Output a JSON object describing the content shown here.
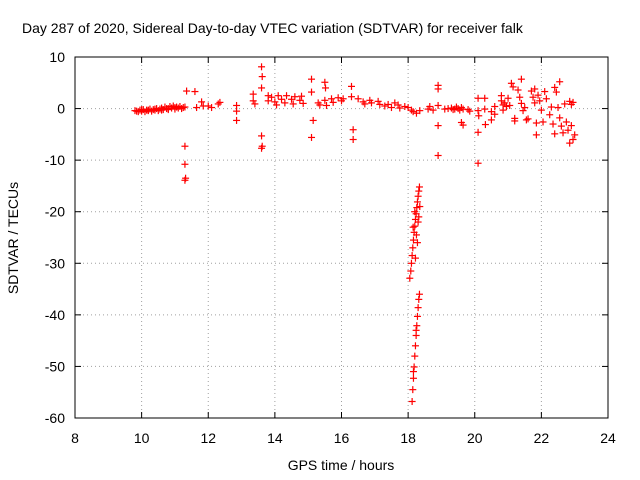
{
  "chart_data": {
    "type": "scatter",
    "title": "Day 287 of 2020, Sidereal Day-to-day VTEC variation (SDTVAR) for receiver falk",
    "xlabel": "GPS time / hours",
    "ylabel": "SDTVAR / TECUs",
    "xlim": [
      8,
      24
    ],
    "ylim": [
      -60,
      10
    ],
    "xticks": [
      8,
      10,
      12,
      14,
      16,
      18,
      20,
      22,
      24
    ],
    "yticks": [
      -60,
      -50,
      -40,
      -30,
      -20,
      -10,
      0,
      10
    ],
    "xtick_labels": [
      "8",
      "10",
      "12",
      "14",
      "16",
      "18",
      "20",
      "22",
      "24"
    ],
    "ytick_labels": [
      "-60",
      "-50",
      "-40",
      "-30",
      "-20",
      "-10",
      "0",
      "10"
    ],
    "grid": true,
    "marker": "+",
    "series": [
      {
        "name": "SDTVAR",
        "color": "#ff0000",
        "points": [
          [
            9.8,
            -0.4
          ],
          [
            9.85,
            -0.5
          ],
          [
            9.9,
            -0.6
          ],
          [
            9.95,
            -0.3
          ],
          [
            10.0,
            -0.5
          ],
          [
            10.05,
            -0.2
          ],
          [
            10.1,
            -0.6
          ],
          [
            10.15,
            -0.3
          ],
          [
            10.2,
            -0.4
          ],
          [
            10.25,
            -0.1
          ],
          [
            10.3,
            -0.5
          ],
          [
            10.35,
            -0.2
          ],
          [
            10.4,
            -0.3
          ],
          [
            10.45,
            0.0
          ],
          [
            10.5,
            -0.4
          ],
          [
            10.55,
            -0.1
          ],
          [
            10.6,
            0.1
          ],
          [
            10.65,
            -0.2
          ],
          [
            10.7,
            0.3
          ],
          [
            10.75,
            0.0
          ],
          [
            10.8,
            -0.2
          ],
          [
            10.85,
            0.4
          ],
          [
            10.9,
            0.1
          ],
          [
            10.95,
            0.5
          ],
          [
            11.0,
            0.2
          ],
          [
            11.05,
            0.3
          ],
          [
            11.1,
            0.1
          ],
          [
            11.15,
            0.4
          ],
          [
            11.2,
            0.0
          ],
          [
            11.25,
            0.2
          ],
          [
            11.3,
            0.3
          ],
          [
            10.0,
            -0.2
          ],
          [
            10.2,
            -0.3
          ],
          [
            10.4,
            -0.1
          ],
          [
            10.6,
            -0.3
          ],
          [
            10.8,
            0.0
          ],
          [
            11.0,
            -0.1
          ],
          [
            11.3,
            -7.3
          ],
          [
            11.3,
            -10.8
          ],
          [
            11.32,
            -13.5
          ],
          [
            11.3,
            -13.9
          ],
          [
            11.35,
            3.4
          ],
          [
            11.6,
            3.3
          ],
          [
            11.65,
            0.2
          ],
          [
            11.8,
            1.3
          ],
          [
            11.85,
            0.5
          ],
          [
            12.0,
            0.5
          ],
          [
            12.1,
            0.2
          ],
          [
            12.3,
            0.9
          ],
          [
            12.35,
            1.2
          ],
          [
            12.85,
            0.6
          ],
          [
            12.85,
            -0.5
          ],
          [
            12.85,
            -2.3
          ],
          [
            13.35,
            2.8
          ],
          [
            13.35,
            1.5
          ],
          [
            13.4,
            0.9
          ],
          [
            13.6,
            8.1
          ],
          [
            13.62,
            6.2
          ],
          [
            13.6,
            4.0
          ],
          [
            13.6,
            -5.3
          ],
          [
            13.62,
            -7.3
          ],
          [
            13.6,
            -7.7
          ],
          [
            13.8,
            2.5
          ],
          [
            13.8,
            1.5
          ],
          [
            13.9,
            2.2
          ],
          [
            14.0,
            1.3
          ],
          [
            14.05,
            0.7
          ],
          [
            14.1,
            2.5
          ],
          [
            14.2,
            1.8
          ],
          [
            14.3,
            1.1
          ],
          [
            14.35,
            2.5
          ],
          [
            14.5,
            1.8
          ],
          [
            14.55,
            0.9
          ],
          [
            14.6,
            2.3
          ],
          [
            14.75,
            1.6
          ],
          [
            14.8,
            2.4
          ],
          [
            14.85,
            1.0
          ],
          [
            15.1,
            5.7
          ],
          [
            15.1,
            3.2
          ],
          [
            15.15,
            -2.3
          ],
          [
            15.1,
            -5.6
          ],
          [
            15.3,
            1.1
          ],
          [
            15.35,
            0.7
          ],
          [
            15.5,
            1.6
          ],
          [
            15.5,
            5.1
          ],
          [
            15.52,
            4.0
          ],
          [
            15.55,
            0.6
          ],
          [
            15.7,
            1.9
          ],
          [
            15.75,
            1.2
          ],
          [
            15.9,
            2.1
          ],
          [
            16.0,
            1.5
          ],
          [
            16.05,
            1.9
          ],
          [
            16.3,
            4.3
          ],
          [
            16.3,
            2.3
          ],
          [
            16.35,
            -4.1
          ],
          [
            16.35,
            -6.0
          ],
          [
            16.5,
            1.9
          ],
          [
            16.65,
            1.3
          ],
          [
            16.7,
            0.9
          ],
          [
            16.85,
            1.6
          ],
          [
            16.9,
            1.1
          ],
          [
            17.1,
            1.4
          ],
          [
            17.15,
            0.8
          ],
          [
            17.3,
            0.5
          ],
          [
            17.4,
            0.8
          ],
          [
            17.5,
            0.2
          ],
          [
            17.6,
            1.1
          ],
          [
            17.7,
            0.7
          ],
          [
            17.75,
            0.1
          ],
          [
            17.9,
            0.4
          ],
          [
            18.0,
            0.2
          ],
          [
            18.1,
            -0.3
          ],
          [
            18.15,
            -0.6
          ],
          [
            18.25,
            -0.9
          ],
          [
            18.35,
            -0.4
          ],
          [
            18.6,
            -0.1
          ],
          [
            18.65,
            0.4
          ],
          [
            18.75,
            -0.3
          ],
          [
            18.9,
            3.8
          ],
          [
            18.9,
            4.5
          ],
          [
            18.9,
            0.6
          ],
          [
            18.9,
            -3.3
          ],
          [
            18.9,
            -9.1
          ],
          [
            19.1,
            -0.1
          ],
          [
            19.2,
            0.0
          ],
          [
            19.3,
            0.1
          ],
          [
            19.35,
            -0.2
          ],
          [
            19.4,
            -0.1
          ],
          [
            19.45,
            0.3
          ],
          [
            19.5,
            0.0
          ],
          [
            19.55,
            -0.3
          ],
          [
            19.6,
            0.2
          ],
          [
            19.65,
            -0.1
          ],
          [
            19.6,
            -2.7
          ],
          [
            19.65,
            -3.2
          ],
          [
            19.8,
            -0.2
          ],
          [
            19.85,
            -0.5
          ],
          [
            20.1,
            2.0
          ],
          [
            20.1,
            -0.4
          ],
          [
            20.12,
            -1.4
          ],
          [
            20.1,
            -4.6
          ],
          [
            20.1,
            -10.6
          ],
          [
            20.3,
            2.0
          ],
          [
            20.3,
            -0.1
          ],
          [
            20.32,
            -3.1
          ],
          [
            20.5,
            -0.6
          ],
          [
            20.5,
            -2.2
          ],
          [
            20.6,
            0.4
          ],
          [
            20.6,
            -1.1
          ],
          [
            20.8,
            2.5
          ],
          [
            20.8,
            1.5
          ],
          [
            20.85,
            0.7
          ],
          [
            20.85,
            -0.3
          ],
          [
            20.9,
            1.1
          ],
          [
            20.95,
            0.4
          ],
          [
            21.0,
            2.0
          ],
          [
            21.05,
            0.6
          ],
          [
            21.1,
            4.9
          ],
          [
            21.15,
            4.2
          ],
          [
            21.2,
            -1.9
          ],
          [
            21.2,
            -2.4
          ],
          [
            21.3,
            3.6
          ],
          [
            21.35,
            2.2
          ],
          [
            21.4,
            5.7
          ],
          [
            21.4,
            1.0
          ],
          [
            21.45,
            -0.4
          ],
          [
            21.5,
            0.2
          ],
          [
            21.55,
            -2.2
          ],
          [
            21.6,
            -2.0
          ],
          [
            21.7,
            3.4
          ],
          [
            21.75,
            2.2
          ],
          [
            21.8,
            3.8
          ],
          [
            21.8,
            1.1
          ],
          [
            21.85,
            -2.8
          ],
          [
            21.85,
            -5.1
          ],
          [
            21.9,
            2.6
          ],
          [
            21.95,
            1.5
          ],
          [
            22.0,
            -0.3
          ],
          [
            22.05,
            -2.6
          ],
          [
            22.1,
            3.3
          ],
          [
            22.15,
            1.9
          ],
          [
            22.25,
            -1.2
          ],
          [
            22.3,
            0.3
          ],
          [
            22.35,
            -3.0
          ],
          [
            22.4,
            4.1
          ],
          [
            22.4,
            -4.9
          ],
          [
            22.45,
            3.2
          ],
          [
            22.5,
            0.2
          ],
          [
            22.55,
            5.2
          ],
          [
            22.55,
            -1.8
          ],
          [
            22.6,
            -3.4
          ],
          [
            22.65,
            -4.7
          ],
          [
            22.7,
            0.9
          ],
          [
            22.75,
            -2.6
          ],
          [
            22.8,
            -4.2
          ],
          [
            22.85,
            1.4
          ],
          [
            22.85,
            -6.7
          ],
          [
            22.9,
            0.8
          ],
          [
            22.9,
            -3.3
          ],
          [
            22.95,
            -6.0
          ],
          [
            22.95,
            1.2
          ],
          [
            23.0,
            -5.1
          ],
          [
            18.05,
            -32.9
          ],
          [
            18.08,
            -31.5
          ],
          [
            18.1,
            -30.0
          ],
          [
            18.12,
            -28.5
          ],
          [
            18.14,
            -27.0
          ],
          [
            18.16,
            -25.5
          ],
          [
            18.18,
            -24.0
          ],
          [
            18.2,
            -22.8
          ],
          [
            18.22,
            -21.5
          ],
          [
            18.24,
            -20.4
          ],
          [
            18.26,
            -19.2
          ],
          [
            18.28,
            -18.1
          ],
          [
            18.3,
            -17.0
          ],
          [
            18.32,
            -16.0
          ],
          [
            18.34,
            -15.2
          ],
          [
            18.15,
            -23.0
          ],
          [
            18.2,
            -20.0
          ],
          [
            18.25,
            -24.5
          ],
          [
            18.3,
            -22.0
          ],
          [
            18.35,
            -19.0
          ],
          [
            18.28,
            -26.0
          ],
          [
            18.22,
            -29.0
          ],
          [
            18.32,
            -21.0
          ],
          [
            18.12,
            -56.8
          ],
          [
            18.14,
            -54.5
          ],
          [
            18.16,
            -52.3
          ],
          [
            18.18,
            -50.1
          ],
          [
            18.2,
            -48.0
          ],
          [
            18.22,
            -46.0
          ],
          [
            18.24,
            -44.0
          ],
          [
            18.26,
            -42.1
          ],
          [
            18.28,
            -40.3
          ],
          [
            18.3,
            -38.6
          ],
          [
            18.32,
            -37.0
          ],
          [
            18.34,
            -36.0
          ],
          [
            18.16,
            -51.0
          ],
          [
            18.24,
            -43.0
          ]
        ]
      }
    ]
  }
}
